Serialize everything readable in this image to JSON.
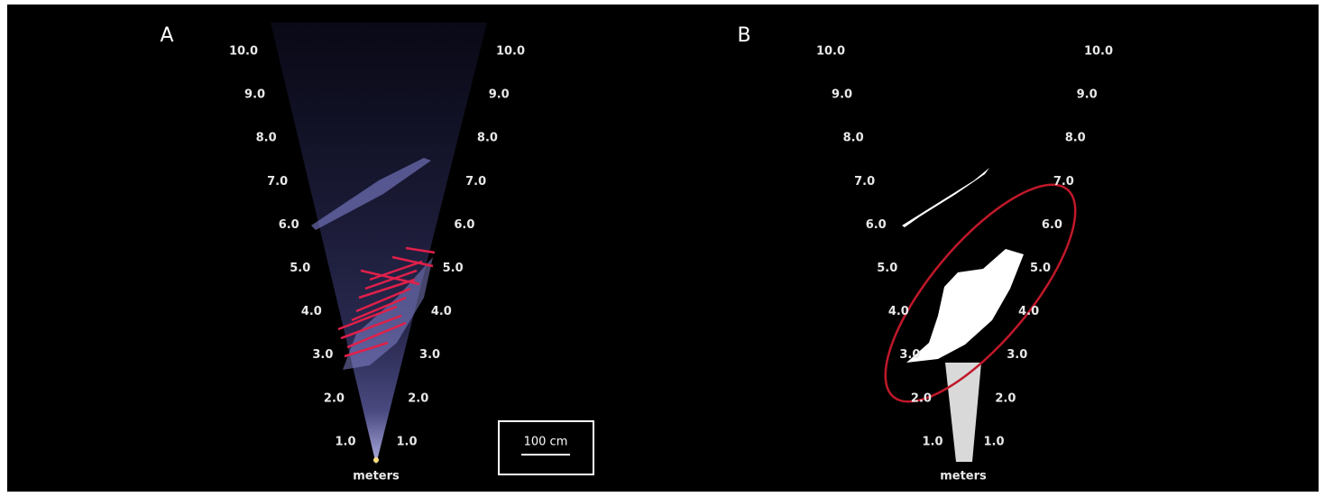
{
  "panels": [
    {
      "label": "A",
      "left_ranges": [
        "10.0",
        "9.0",
        "8.0",
        "7.0",
        "6.0",
        "5.0",
        "4.0",
        "3.0",
        "2.0",
        "1.0"
      ],
      "right_ranges": [
        "10.0",
        "9.0",
        "8.0",
        "7.0",
        "6.0",
        "5.0",
        "4.0",
        "3.0",
        "2.0",
        "1.0"
      ],
      "unit": "meters"
    },
    {
      "label": "B",
      "left_ranges": [
        "10.0",
        "9.0",
        "8.0",
        "7.0",
        "6.0",
        "5.0",
        "4.0",
        "3.0",
        "2.0",
        "1.0"
      ],
      "right_ranges": [
        "10.0",
        "9.0",
        "8.0",
        "7.0",
        "6.0",
        "5.0",
        "4.0",
        "3.0",
        "2.0",
        "1.0"
      ],
      "unit": "meters"
    }
  ],
  "scale_bar": "100 cm"
}
